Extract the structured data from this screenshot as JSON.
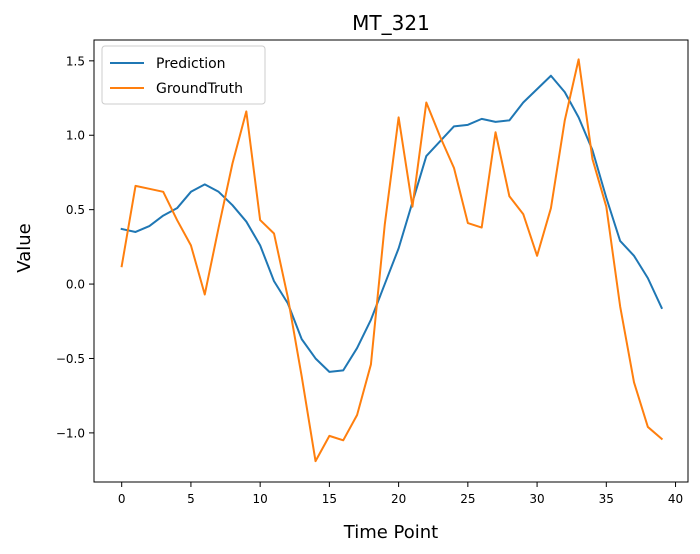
{
  "chart_data": {
    "type": "line",
    "title": "MT_321",
    "xlabel": "Time Point",
    "ylabel": "Value",
    "xlim": [
      -2,
      40.9
    ],
    "ylim": [
      -1.33,
      1.64
    ],
    "xticks": [
      0,
      5,
      10,
      15,
      20,
      25,
      30,
      35,
      40
    ],
    "xtick_labels": [
      "0",
      "5",
      "10",
      "15",
      "20",
      "25",
      "30",
      "35",
      "40"
    ],
    "yticks": [
      -1.0,
      -0.5,
      0.0,
      0.5,
      1.0,
      1.5
    ],
    "ytick_labels": [
      "−1.0",
      "−0.5",
      "0.0",
      "0.5",
      "1.0",
      "1.5"
    ],
    "grid": false,
    "legend_position": "top-left",
    "x": [
      0,
      1,
      2,
      3,
      4,
      5,
      6,
      7,
      8,
      9,
      10,
      11,
      12,
      13,
      14,
      15,
      16,
      17,
      18,
      19,
      20,
      21,
      22,
      23,
      24,
      25,
      26,
      27,
      28,
      29,
      30,
      31,
      32,
      33,
      34,
      35,
      36,
      37,
      38,
      39
    ],
    "series": [
      {
        "name": "Prediction",
        "color": "#1f77b4",
        "values": [
          0.37,
          0.35,
          0.39,
          0.46,
          0.51,
          0.62,
          0.67,
          0.62,
          0.53,
          0.42,
          0.26,
          0.02,
          -0.13,
          -0.37,
          -0.5,
          -0.59,
          -0.58,
          -0.43,
          -0.24,
          0.0,
          0.24,
          0.55,
          0.86,
          0.96,
          1.06,
          1.07,
          1.11,
          1.09,
          1.1,
          1.22,
          1.31,
          1.4,
          1.29,
          1.12,
          0.9,
          0.58,
          0.29,
          0.19,
          0.04,
          -0.16
        ]
      },
      {
        "name": "GroundTruth",
        "color": "#ff7f0e",
        "values": [
          0.12,
          0.66,
          0.64,
          0.62,
          0.43,
          0.26,
          -0.07,
          0.38,
          0.81,
          1.16,
          0.43,
          0.34,
          -0.09,
          -0.62,
          -1.19,
          -1.02,
          -1.05,
          -0.88,
          -0.54,
          0.4,
          1.12,
          0.52,
          1.22,
          0.99,
          0.78,
          0.41,
          0.38,
          1.02,
          0.59,
          0.47,
          0.19,
          0.51,
          1.1,
          1.51,
          0.84,
          0.52,
          -0.15,
          -0.66,
          -0.96,
          -1.04
        ]
      }
    ]
  }
}
